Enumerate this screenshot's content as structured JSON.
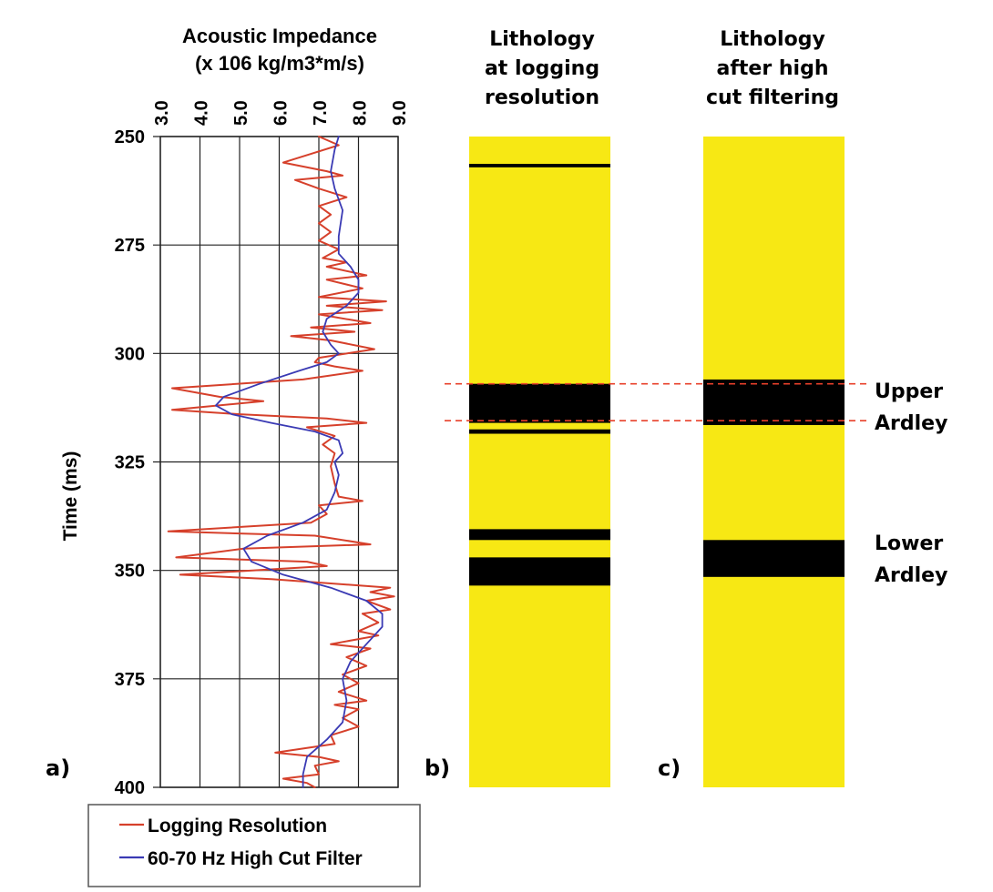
{
  "chart_data": [
    {
      "panel": "a)",
      "type": "line",
      "title": "Acoustic Impedance",
      "subtitle": "(x 106 kg/m3*m/s)",
      "xlabel": "Acoustic Impedance (x 106 kg/m3*m/s)",
      "ylabel": "Time (ms)",
      "xlim": [
        3.0,
        9.0
      ],
      "ylim": [
        250,
        400
      ],
      "y_inverted": true,
      "x_axis_position": "top",
      "xticks": [
        "3.0",
        "4.0",
        "5.0",
        "6.0",
        "7.0",
        "8.0",
        "9.0"
      ],
      "yticks": [
        "250",
        "275",
        "300",
        "325",
        "350",
        "375",
        "400"
      ],
      "grid": true,
      "legend": "bottom",
      "series": [
        {
          "name": "Logging Resolution",
          "color": "#d6402b",
          "points": [
            [
              7.0,
              250
            ],
            [
              7.5,
              252
            ],
            [
              6.8,
              254
            ],
            [
              6.1,
              256
            ],
            [
              7.2,
              258
            ],
            [
              7.6,
              259
            ],
            [
              6.4,
              260
            ],
            [
              7.0,
              262
            ],
            [
              7.7,
              264
            ],
            [
              7.0,
              266
            ],
            [
              7.3,
              268
            ],
            [
              7.0,
              270
            ],
            [
              7.3,
              272
            ],
            [
              7.0,
              274
            ],
            [
              7.5,
              276
            ],
            [
              7.1,
              278
            ],
            [
              7.7,
              279
            ],
            [
              7.2,
              280
            ],
            [
              8.2,
              282
            ],
            [
              7.2,
              283
            ],
            [
              8.1,
              285
            ],
            [
              7.0,
              287
            ],
            [
              8.7,
              288
            ],
            [
              7.2,
              289
            ],
            [
              8.6,
              290
            ],
            [
              7.0,
              291
            ],
            [
              8.3,
              293
            ],
            [
              6.8,
              294
            ],
            [
              7.9,
              295
            ],
            [
              6.3,
              296
            ],
            [
              7.3,
              297
            ],
            [
              8.4,
              299
            ],
            [
              7.0,
              301
            ],
            [
              6.9,
              302
            ],
            [
              7.4,
              303
            ],
            [
              8.1,
              304
            ],
            [
              6.6,
              306
            ],
            [
              3.3,
              308
            ],
            [
              4.5,
              310
            ],
            [
              5.6,
              311
            ],
            [
              3.3,
              313
            ],
            [
              5.0,
              314
            ],
            [
              7.2,
              315
            ],
            [
              8.2,
              316
            ],
            [
              6.7,
              317
            ],
            [
              7.4,
              319
            ],
            [
              7.1,
              321
            ],
            [
              7.4,
              323
            ],
            [
              7.3,
              326
            ],
            [
              7.4,
              330
            ],
            [
              7.5,
              333
            ],
            [
              8.1,
              334
            ],
            [
              7.0,
              335
            ],
            [
              7.2,
              337
            ],
            [
              6.8,
              339
            ],
            [
              3.2,
              341
            ],
            [
              6.9,
              342
            ],
            [
              8.3,
              344
            ],
            [
              5.1,
              345
            ],
            [
              3.4,
              347
            ],
            [
              6.7,
              348
            ],
            [
              7.2,
              349
            ],
            [
              3.5,
              351
            ],
            [
              5.8,
              352
            ],
            [
              8.8,
              354
            ],
            [
              8.3,
              355
            ],
            [
              8.9,
              356
            ],
            [
              8.2,
              357
            ],
            [
              8.8,
              359
            ],
            [
              8.1,
              360
            ],
            [
              8.5,
              362
            ],
            [
              8.0,
              364
            ],
            [
              8.5,
              365
            ],
            [
              7.3,
              367
            ],
            [
              8.3,
              368
            ],
            [
              7.7,
              370
            ],
            [
              8.2,
              372
            ],
            [
              7.6,
              374
            ],
            [
              8.0,
              376
            ],
            [
              7.5,
              378
            ],
            [
              8.2,
              380
            ],
            [
              7.4,
              381
            ],
            [
              8.0,
              382
            ],
            [
              7.6,
              384
            ],
            [
              8.0,
              386
            ],
            [
              7.3,
              388
            ],
            [
              7.4,
              390
            ],
            [
              5.9,
              392
            ],
            [
              7.0,
              393
            ],
            [
              7.5,
              394
            ],
            [
              6.9,
              395
            ],
            [
              7.0,
              397
            ],
            [
              6.1,
              398
            ],
            [
              6.7,
              399
            ],
            [
              6.9,
              400
            ]
          ]
        },
        {
          "name": "60-70 Hz High Cut Filter",
          "color": "#3a3ab4",
          "points": [
            [
              7.5,
              250
            ],
            [
              7.4,
              253
            ],
            [
              7.3,
              258
            ],
            [
              7.4,
              262
            ],
            [
              7.6,
              267
            ],
            [
              7.5,
              273
            ],
            [
              7.5,
              277
            ],
            [
              7.8,
              280
            ],
            [
              8.0,
              283
            ],
            [
              8.0,
              286
            ],
            [
              7.7,
              289
            ],
            [
              7.2,
              292
            ],
            [
              7.1,
              295
            ],
            [
              7.3,
              298
            ],
            [
              7.5,
              300
            ],
            [
              7.2,
              302
            ],
            [
              6.5,
              304
            ],
            [
              5.5,
              307
            ],
            [
              4.6,
              310
            ],
            [
              4.4,
              312
            ],
            [
              4.8,
              314
            ],
            [
              5.8,
              316
            ],
            [
              6.9,
              318
            ],
            [
              7.5,
              320
            ],
            [
              7.6,
              323
            ],
            [
              7.4,
              325
            ],
            [
              7.5,
              328
            ],
            [
              7.4,
              332
            ],
            [
              7.2,
              336
            ],
            [
              6.6,
              339
            ],
            [
              5.7,
              342
            ],
            [
              5.1,
              345
            ],
            [
              5.3,
              348
            ],
            [
              6.1,
              351
            ],
            [
              7.3,
              354
            ],
            [
              8.2,
              357
            ],
            [
              8.6,
              360
            ],
            [
              8.6,
              363
            ],
            [
              8.2,
              367
            ],
            [
              7.8,
              371
            ],
            [
              7.6,
              375
            ],
            [
              7.7,
              380
            ],
            [
              7.6,
              385
            ],
            [
              7.2,
              389
            ],
            [
              6.7,
              393
            ],
            [
              6.6,
              397
            ],
            [
              6.6,
              400
            ]
          ]
        }
      ]
    },
    {
      "panel": "b)",
      "type": "bar",
      "title": "Lithology at logging resolution",
      "ylim": [
        250,
        400
      ],
      "background_color": "#f7e814",
      "layer_color": "#000000",
      "layers": [
        [
          256.3,
          257.1
        ],
        [
          307,
          316
        ],
        [
          317.5,
          318.5
        ],
        [
          340.5,
          343
        ],
        [
          347,
          353.5
        ]
      ]
    },
    {
      "panel": "c)",
      "type": "bar",
      "title": "Lithology after high cut filtering",
      "ylim": [
        250,
        400
      ],
      "background_color": "#f7e814",
      "layer_color": "#000000",
      "layers": [
        [
          306,
          316.5
        ],
        [
          343,
          351.5
        ]
      ]
    }
  ],
  "labels": {
    "panel_a": "a)",
    "panel_b": "b)",
    "panel_c": "c)",
    "upper": "Upper",
    "ardley_upper": "Ardley",
    "lower": "Lower",
    "ardley_lower": "Ardley",
    "title_b": [
      "Lithology",
      "at logging",
      "resolution"
    ],
    "title_c": [
      "Lithology",
      "after high",
      "cut filtering"
    ]
  },
  "markers": {
    "dashed_color": "#e8402a",
    "dashed_lines": [
      307,
      315.5
    ]
  }
}
